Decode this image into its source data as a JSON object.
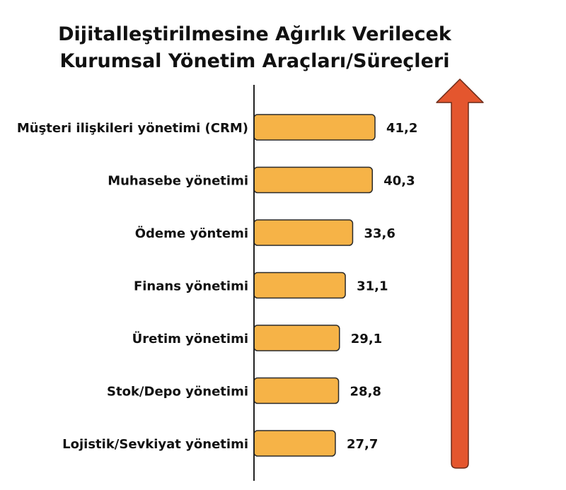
{
  "chart_data": {
    "type": "bar",
    "orientation": "horizontal",
    "title_lines": [
      "Dijitalleştirilmesine Ağırlık Verilecek",
      "Kurumsal Yönetim Araçları/Süreçleri"
    ],
    "categories": [
      "Müşteri ilişkileri yönetimi (CRM)",
      "Muhasebe yönetimi",
      "Ödeme yöntemi",
      "Finans yönetimi",
      "Üretim yönetimi",
      "Stok/Depo yönetimi",
      "Lojistik/Sevkiyat yönetimi"
    ],
    "values": [
      41.2,
      40.3,
      33.6,
      31.1,
      29.1,
      28.8,
      27.7
    ],
    "value_labels": [
      "41,2",
      "40,3",
      "33,6",
      "31,1",
      "29,1",
      "28,8",
      "27,7"
    ],
    "xlabel": "",
    "ylabel": "",
    "grid": false,
    "legend": "none",
    "colors": {
      "bar_fill": "#F6B347",
      "bar_stroke": "#2a2a2a",
      "axis": "#222222",
      "arrow": "#E4562E",
      "arrow_stroke": "#6b2a18"
    }
  }
}
